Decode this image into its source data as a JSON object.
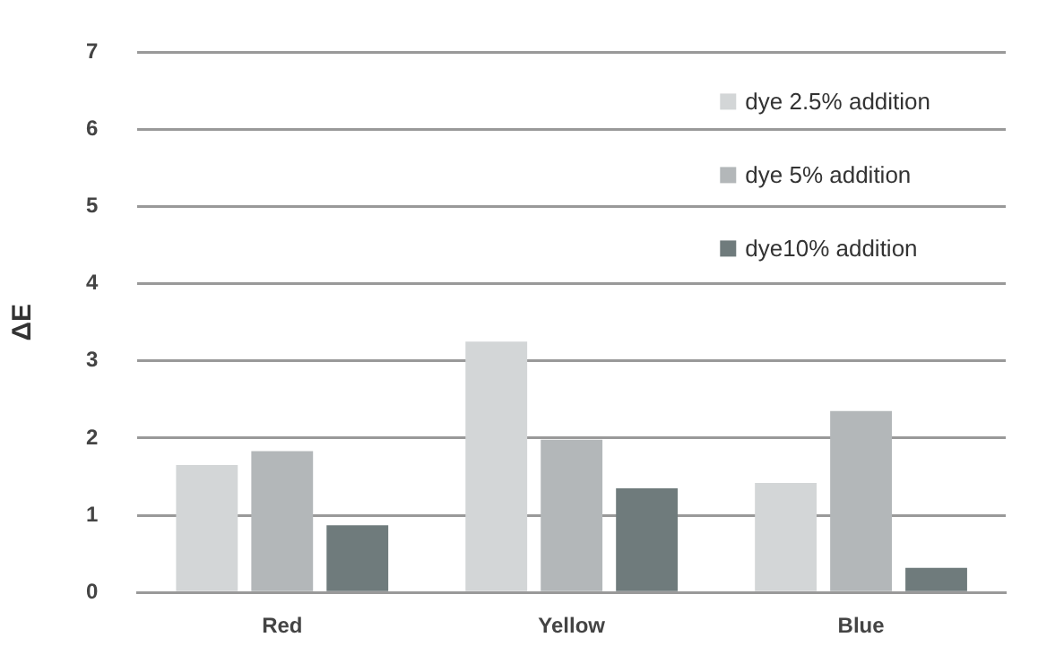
{
  "chart_data": {
    "type": "bar",
    "ylabel": "ΔE",
    "categories": [
      "Red",
      "Yellow",
      "Blue"
    ],
    "series": [
      {
        "name": "dye 2.5% addition",
        "color": "#d3d6d7",
        "values": [
          1.65,
          3.25,
          1.42
        ]
      },
      {
        "name": "dye 5% addition",
        "color": "#b3b7b9",
        "values": [
          1.83,
          1.98,
          2.35
        ]
      },
      {
        "name": "dye10% addition",
        "color": "#6f7b7c",
        "values": [
          0.87,
          1.35,
          0.32
        ]
      }
    ],
    "ylim": [
      0,
      7
    ],
    "yticks": [
      0,
      1,
      2,
      3,
      4,
      5,
      6,
      7
    ],
    "grid": "y",
    "legend": "top right"
  }
}
